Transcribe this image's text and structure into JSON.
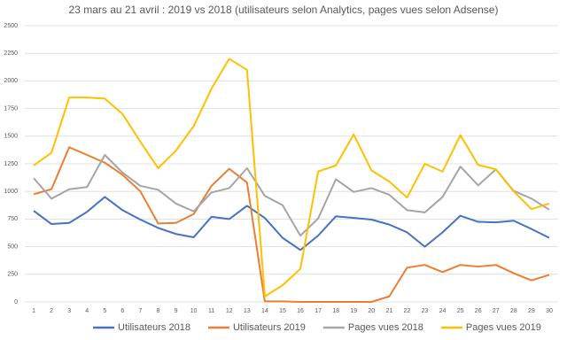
{
  "chart_data": {
    "type": "line",
    "title": "23 mars au 21 avril : 2019 vs 2018 (utilisateurs selon Analytics, pages vues selon Adsense)",
    "categories": [
      "1",
      "2",
      "3",
      "4",
      "5",
      "6",
      "7",
      "8",
      "9",
      "10",
      "11",
      "12",
      "13",
      "14",
      "15",
      "16",
      "17",
      "18",
      "19",
      "20",
      "21",
      "22",
      "23",
      "24",
      "25",
      "26",
      "27",
      "28",
      "29",
      "30"
    ],
    "series": [
      {
        "name": "Utilisateurs 2018",
        "color": "#4472c4",
        "values": [
          825,
          705,
          715,
          815,
          950,
          830,
          745,
          670,
          615,
          585,
          770,
          750,
          870,
          760,
          580,
          470,
          600,
          775,
          760,
          745,
          700,
          630,
          500,
          630,
          780,
          725,
          720,
          735,
          660,
          580
        ]
      },
      {
        "name": "Utilisateurs 2019",
        "color": "#ed7d31",
        "values": [
          975,
          1020,
          1400,
          1330,
          1260,
          1150,
          1000,
          710,
          715,
          795,
          1050,
          1205,
          1080,
          5,
          5,
          0,
          0,
          0,
          0,
          0,
          50,
          310,
          335,
          270,
          335,
          320,
          335,
          260,
          195,
          245
        ]
      },
      {
        "name": "Pages vues 2018",
        "color": "#a5a5a5",
        "values": [
          1120,
          935,
          1020,
          1040,
          1330,
          1170,
          1050,
          1015,
          890,
          820,
          990,
          1030,
          1210,
          960,
          875,
          600,
          755,
          1110,
          995,
          1030,
          970,
          830,
          810,
          950,
          1225,
          1055,
          1200,
          1005,
          935,
          835
        ]
      },
      {
        "name": "Pages vues 2019",
        "color": "#ffc000",
        "values": [
          1235,
          1350,
          1850,
          1850,
          1840,
          1700,
          1450,
          1210,
          1370,
          1590,
          1930,
          2200,
          2100,
          50,
          150,
          300,
          1180,
          1235,
          1515,
          1190,
          1090,
          945,
          1250,
          1180,
          1510,
          1240,
          1200,
          1000,
          840,
          890
        ]
      }
    ],
    "ylim": [
      0,
      2500
    ],
    "yticks": [
      0,
      250,
      500,
      750,
      1000,
      1250,
      1500,
      1750,
      2000,
      2250,
      2500
    ],
    "grid": true,
    "legend": "bottom"
  }
}
